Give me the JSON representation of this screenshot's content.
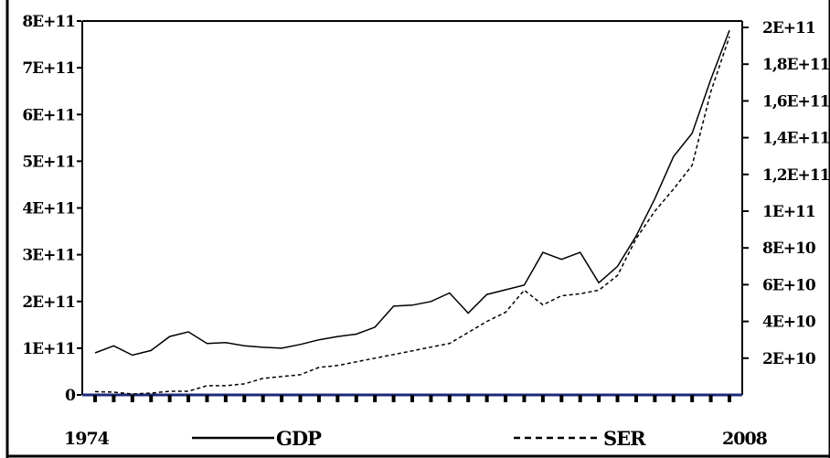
{
  "chart_data": {
    "type": "line",
    "x_start_label": "1974",
    "x_end_label": "2008",
    "years": [
      1974,
      1975,
      1976,
      1977,
      1978,
      1979,
      1980,
      1981,
      1982,
      1983,
      1984,
      1985,
      1986,
      1987,
      1988,
      1989,
      1990,
      1991,
      1992,
      1993,
      1994,
      1995,
      1996,
      1997,
      1998,
      1999,
      2000,
      2001,
      2002,
      2003,
      2004,
      2005,
      2006,
      2007,
      2008
    ],
    "left_axis": {
      "ylim": [
        0,
        800000000000
      ],
      "tick_labels": [
        "0",
        "1E+11",
        "2E+11",
        "3E+11",
        "4E+11",
        "5E+11",
        "6E+11",
        "7E+11",
        "8E+11"
      ]
    },
    "right_axis": {
      "ylim": [
        0,
        200000000000
      ],
      "tick_labels": [
        "2E+10",
        "4E+10",
        "6E+10",
        "8E+10",
        "1E+11",
        "1,2E+11",
        "1,4E+11",
        "1,6E+11",
        "1,8E+11",
        "2E+11"
      ]
    },
    "series": [
      {
        "name": "GDP",
        "axis": "left",
        "dash": "solid",
        "values": [
          90000000000.0,
          105000000000.0,
          85000000000.0,
          95000000000.0,
          125000000000.0,
          135000000000.0,
          110000000000.0,
          112000000000.0,
          105000000000.0,
          102000000000.0,
          100000000000.0,
          108000000000.0,
          118000000000.0,
          125000000000.0,
          130000000000.0,
          145000000000.0,
          190000000000.0,
          192000000000.0,
          200000000000.0,
          218000000000.0,
          175000000000.0,
          215000000000.0,
          225000000000.0,
          235000000000.0,
          305000000000.0,
          290000000000.0,
          305000000000.0,
          240000000000.0,
          275000000000.0,
          340000000000.0,
          420000000000.0,
          510000000000.0,
          560000000000.0,
          675000000000.0,
          780000000000.0
        ]
      },
      {
        "name": "SER",
        "axis": "right",
        "dash": "dashed",
        "values": [
          1800000000.0,
          1500000000.0,
          500000000.0,
          1000000000.0,
          2000000000.0,
          2000000000.0,
          5000000000.0,
          5000000000.0,
          6000000000.0,
          9000000000.0,
          10000000000.0,
          11000000000.0,
          15000000000.0,
          16000000000.0,
          18000000000.0,
          20000000000.0,
          22000000000.0,
          24000000000.0,
          26000000000.0,
          28000000000.0,
          34000000000.0,
          40000000000.0,
          45000000000.0,
          57000000000.0,
          49000000000.0,
          54000000000.0,
          55000000000.0,
          57000000000.0,
          65000000000.0,
          85000000000.0,
          100000000000.0,
          112000000000.0,
          125000000000.0,
          165000000000.0,
          195000000000.0
        ]
      }
    ],
    "legend": {
      "placement": "bottom",
      "entries": [
        "GDP",
        "SER"
      ]
    },
    "grid": false
  }
}
